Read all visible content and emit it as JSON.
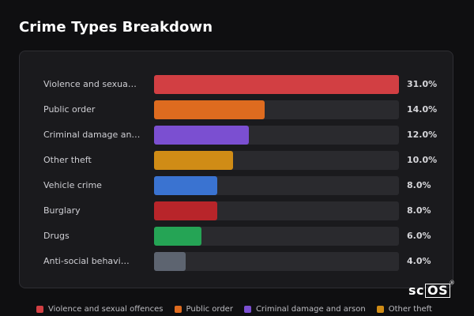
{
  "title": "Crime Types Breakdown",
  "chart_data": {
    "type": "bar",
    "orientation": "horizontal",
    "xlim": [
      0,
      31
    ],
    "categories": [
      "Violence and sexua…",
      "Public order",
      "Criminal damage an…",
      "Other theft",
      "Vehicle crime",
      "Burglary",
      "Drugs",
      "Anti-social behavi…"
    ],
    "values": [
      31.0,
      14.0,
      12.0,
      10.0,
      8.0,
      8.0,
      6.0,
      4.0
    ],
    "value_labels": [
      "31.0%",
      "14.0%",
      "12.0%",
      "10.0%",
      "8.0%",
      "8.0%",
      "6.0%",
      "4.0%"
    ],
    "colors": [
      "#d23f43",
      "#de6b1f",
      "#7b4fd1",
      "#d08c16",
      "#3a73d1",
      "#b8252a",
      "#25a455",
      "#5d6470"
    ],
    "track_color": "#2a2a2e",
    "legend_position": "bottom",
    "legend": [
      {
        "label": "Violence and sexual offences",
        "color": "#d23f43"
      },
      {
        "label": "Public order",
        "color": "#de6b1f"
      },
      {
        "label": "Criminal damage and arson",
        "color": "#7b4fd1"
      },
      {
        "label": "Other theft",
        "color": "#d08c16"
      }
    ]
  },
  "logo": {
    "text_plain": "sc",
    "text_boxed": "OS",
    "mark": "®"
  }
}
